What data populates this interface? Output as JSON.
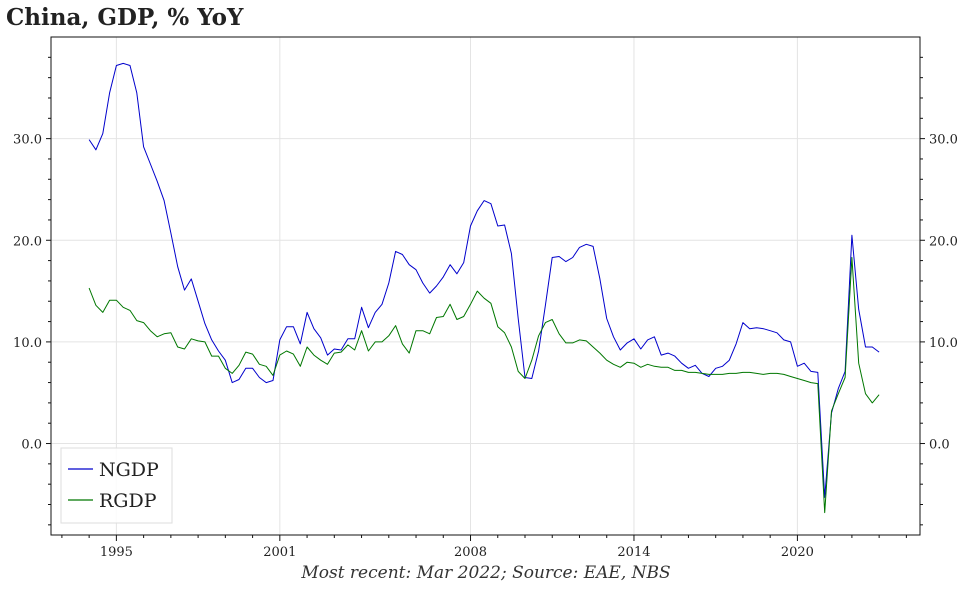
{
  "title": "China, GDP, % YoY",
  "footer": "Most recent: Mar 2022; Source: EAE, NBS",
  "chart_data": {
    "type": "line",
    "title": "China, GDP, % YoY",
    "xlabel": "",
    "ylabel": "",
    "xlim": [
      1992.6,
      2024.5
    ],
    "ylim": [
      -9.0,
      40.0
    ],
    "x_ticks": [
      1995,
      2001,
      2008,
      2014,
      2020
    ],
    "y_ticks": [
      0.0,
      10.0,
      20.0,
      30.0
    ],
    "y_tick_labels": [
      "0.0",
      "10.0",
      "20.0",
      "30.0"
    ],
    "grid": true,
    "legend": "bottom-left",
    "x_step": 0.25,
    "series": [
      {
        "name": "NGDP",
        "color": "#0000cc",
        "x_start": 1994.0,
        "values": [
          29.9,
          28.9,
          30.5,
          34.5,
          37.2,
          37.4,
          37.2,
          34.5,
          29.2,
          27.5,
          25.8,
          23.9,
          20.7,
          17.4,
          15.1,
          16.2,
          14.0,
          11.8,
          10.2,
          9.1,
          8.2,
          6.0,
          6.3,
          7.4,
          7.4,
          6.5,
          6.0,
          6.2,
          10.2,
          11.5,
          11.5,
          9.8,
          12.9,
          11.3,
          10.4,
          8.7,
          9.3,
          9.2,
          10.3,
          10.3,
          13.4,
          11.4,
          12.9,
          13.7,
          15.8,
          18.9,
          18.6,
          17.6,
          17.1,
          15.8,
          14.8,
          15.5,
          16.4,
          17.6,
          16.7,
          17.8,
          21.4,
          22.9,
          23.9,
          23.6,
          21.4,
          21.5,
          18.7,
          12.3,
          6.5,
          6.4,
          9.1,
          13.6,
          18.3,
          18.4,
          17.9,
          18.3,
          19.3,
          19.6,
          19.4,
          16.2,
          12.3,
          10.5,
          9.2,
          9.9,
          10.3,
          9.3,
          10.2,
          10.5,
          8.7,
          8.9,
          8.6,
          7.9,
          7.4,
          7.7,
          6.9,
          6.6,
          7.4,
          7.6,
          8.2,
          9.8,
          11.9,
          11.3,
          11.4,
          11.3,
          11.1,
          10.9,
          10.2,
          10.0,
          7.6,
          7.9,
          7.1,
          7.0,
          -5.3,
          3.0,
          5.4,
          7.1,
          20.5,
          13.2,
          9.5,
          9.5,
          9.0
        ]
      },
      {
        "name": "RGDP",
        "color": "#007700",
        "x_start": 1994.0,
        "values": [
          15.3,
          13.6,
          12.9,
          14.1,
          14.1,
          13.4,
          13.1,
          12.1,
          11.9,
          11.1,
          10.5,
          10.8,
          10.9,
          9.5,
          9.3,
          10.3,
          10.1,
          10.0,
          8.6,
          8.6,
          7.4,
          6.9,
          7.7,
          9.0,
          8.8,
          7.8,
          7.6,
          6.7,
          8.7,
          9.1,
          8.8,
          7.6,
          9.5,
          8.7,
          8.2,
          7.8,
          8.9,
          9.0,
          9.7,
          9.2,
          11.1,
          9.1,
          10.0,
          10.0,
          10.6,
          11.6,
          9.8,
          8.9,
          11.1,
          11.1,
          10.8,
          12.4,
          12.5,
          13.7,
          12.2,
          12.5,
          13.7,
          15.0,
          14.3,
          13.8,
          11.5,
          10.9,
          9.5,
          7.1,
          6.4,
          8.2,
          10.6,
          11.9,
          12.2,
          10.8,
          9.9,
          9.9,
          10.2,
          10.1,
          9.5,
          8.9,
          8.2,
          7.8,
          7.5,
          8.0,
          7.9,
          7.5,
          7.8,
          7.6,
          7.5,
          7.5,
          7.2,
          7.2,
          7.0,
          7.0,
          6.9,
          6.8,
          6.8,
          6.8,
          6.9,
          6.9,
          7.0,
          7.0,
          6.9,
          6.8,
          6.9,
          6.9,
          6.8,
          6.6,
          6.4,
          6.2,
          6.0,
          5.9,
          -6.8,
          3.2,
          4.9,
          6.5,
          18.3,
          7.9,
          4.9,
          4.0,
          4.8
        ]
      }
    ]
  }
}
